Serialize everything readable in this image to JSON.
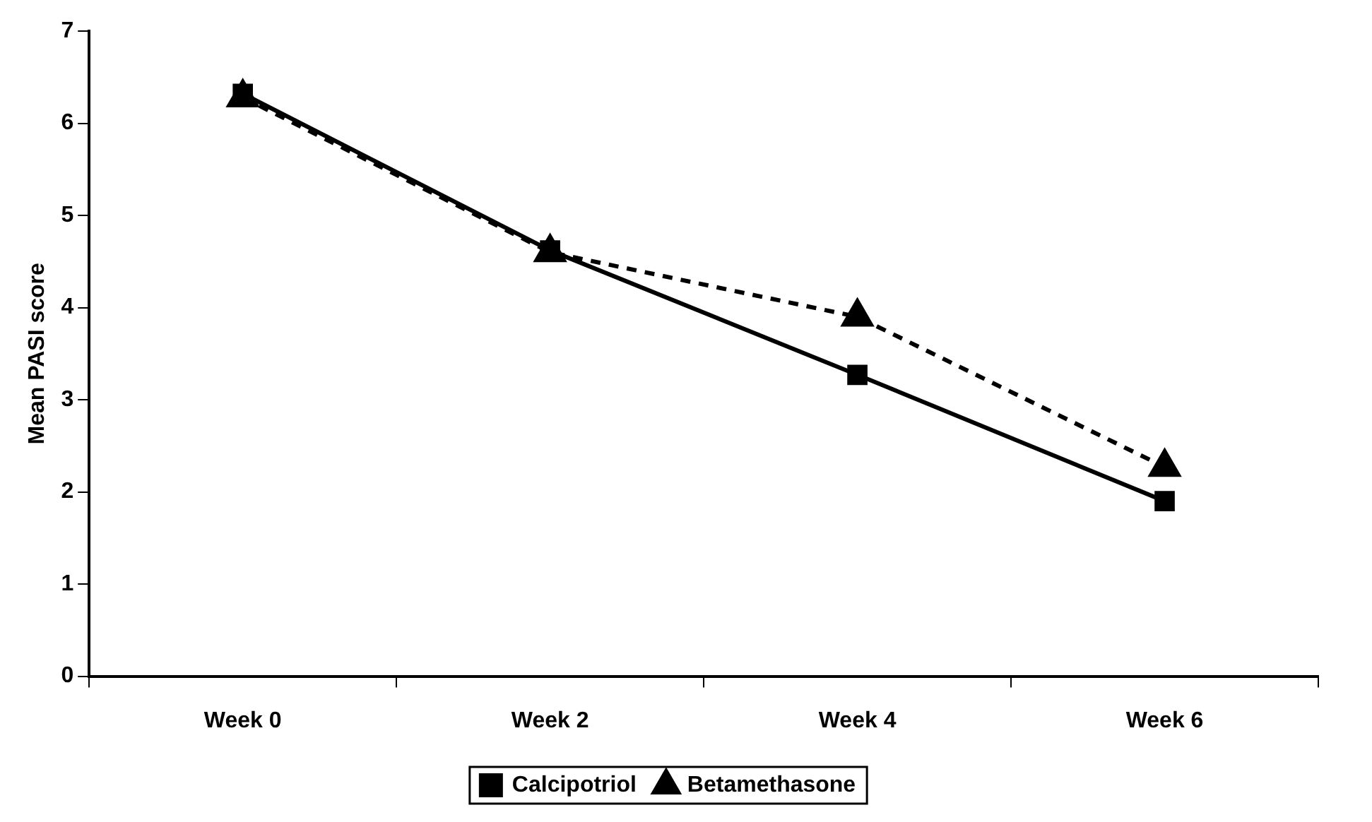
{
  "chart_data": {
    "type": "line",
    "ylabel": "Mean PASI score",
    "categories": [
      "Week 0",
      "Week 2",
      "Week 4",
      "Week 6"
    ],
    "ylim": [
      0,
      7
    ],
    "yticks": [
      0,
      1,
      2,
      3,
      4,
      5,
      6,
      7
    ],
    "grid": false,
    "legend": "bottom",
    "series": [
      {
        "name": "Calcipotriol",
        "color": "#000000",
        "values": [
          6.32,
          4.62,
          3.27,
          1.9
        ],
        "marker": "square",
        "line_style": "solid"
      },
      {
        "name": "Betamethasone",
        "color": "#000000",
        "values": [
          6.28,
          4.6,
          3.9,
          2.27
        ],
        "marker": "triangle",
        "line_style": "dashed"
      }
    ]
  }
}
